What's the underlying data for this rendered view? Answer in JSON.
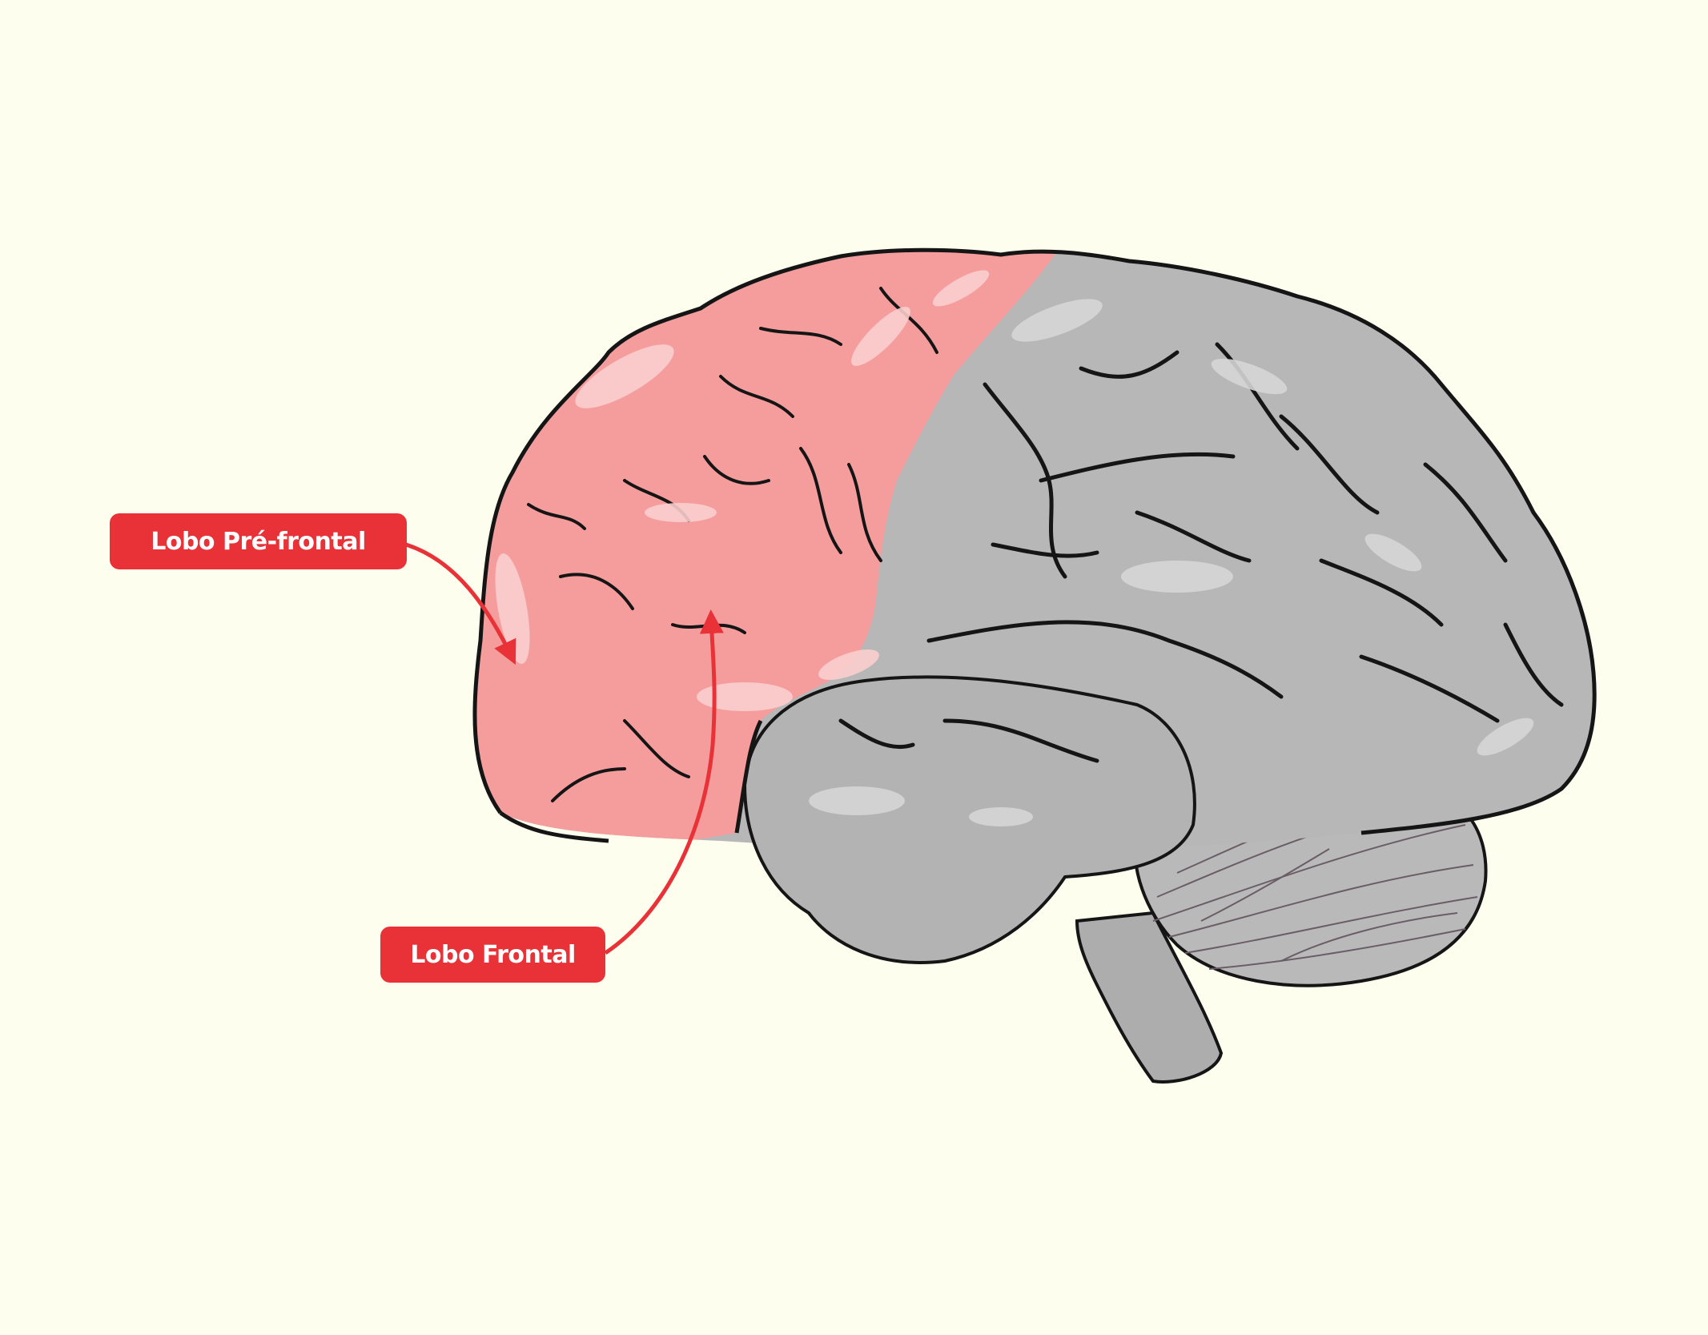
{
  "colors": {
    "background": "#fdfeee",
    "frontal_lobe": "#f59d9d",
    "brain_gray": "#b7b7b7",
    "label_red": "#e93238",
    "outline": "#151515"
  },
  "labels": {
    "prefrontal": "Lobo Pré-frontal",
    "frontal": "Lobo Frontal"
  }
}
